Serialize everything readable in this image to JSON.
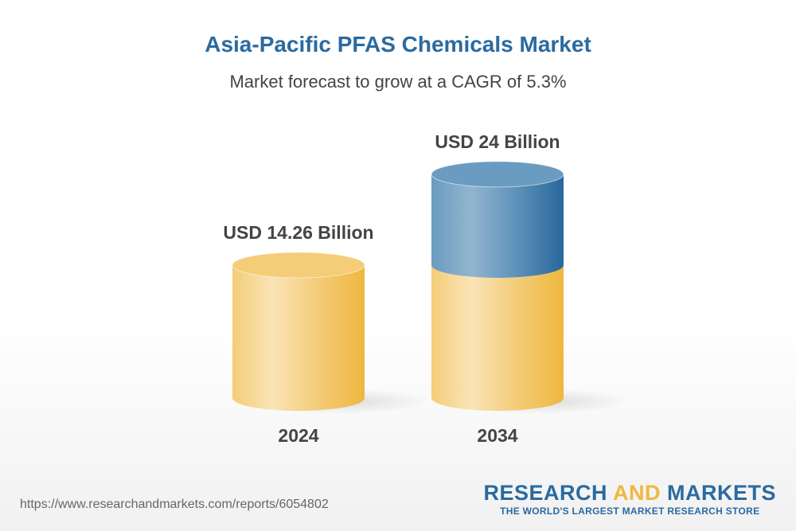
{
  "header": {
    "title": "Asia-Pacific PFAS Chemicals Market",
    "subtitle": "Market forecast to grow at a CAGR of 5.3%"
  },
  "chart_data": {
    "type": "bar",
    "style": "3d-cylinder",
    "categories": [
      "2024",
      "2034"
    ],
    "values": [
      14.26,
      24
    ],
    "unit": "USD Billion",
    "data_labels": [
      "USD 14.26 Billion",
      "USD 24 Billion"
    ],
    "colors": {
      "base": "#f0b840",
      "growth": "#2a6aa0"
    },
    "grid": false
  },
  "footer": {
    "url": "https://www.researchandmarkets.com/reports/6054802",
    "logo_part1": "RESEARCH ",
    "logo_part2": "AND",
    "logo_part3": " MARKETS",
    "logo_tagline": "THE WORLD'S LARGEST MARKET RESEARCH STORE"
  }
}
